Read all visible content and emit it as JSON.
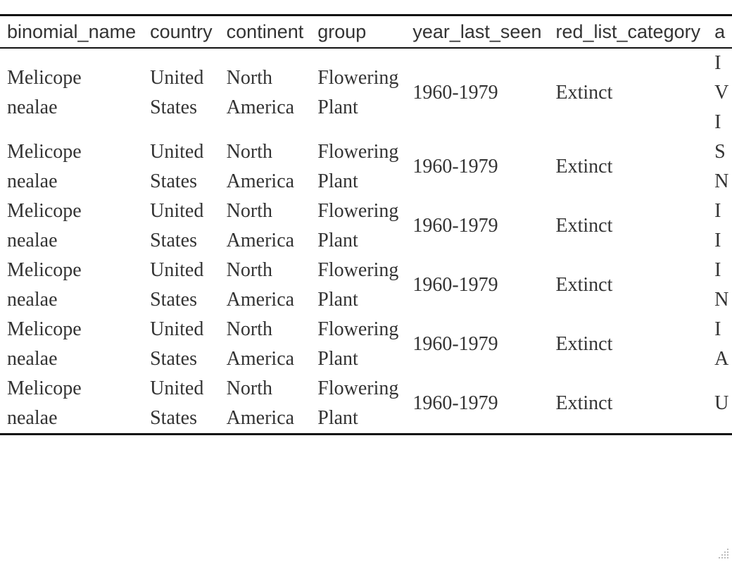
{
  "table": {
    "columns": [
      "binomial_name",
      "country",
      "continent",
      "group",
      "year_last_seen",
      "red_list_category",
      "a"
    ],
    "rows": [
      {
        "binomial_name": [
          "Melicope",
          "nealae"
        ],
        "country": [
          "United",
          "States"
        ],
        "continent": [
          "North",
          "America"
        ],
        "group": [
          "Flowering",
          "Plant"
        ],
        "year_last_seen": "1960-1979",
        "red_list_category": "Extinct",
        "extra": [
          "I",
          "V",
          "I"
        ]
      },
      {
        "binomial_name": [
          "Melicope",
          "nealae"
        ],
        "country": [
          "United",
          "States"
        ],
        "continent": [
          "North",
          "America"
        ],
        "group": [
          "Flowering",
          "Plant"
        ],
        "year_last_seen": "1960-1979",
        "red_list_category": "Extinct",
        "extra": [
          "S",
          "N"
        ]
      },
      {
        "binomial_name": [
          "Melicope",
          "nealae"
        ],
        "country": [
          "United",
          "States"
        ],
        "continent": [
          "North",
          "America"
        ],
        "group": [
          "Flowering",
          "Plant"
        ],
        "year_last_seen": "1960-1979",
        "red_list_category": "Extinct",
        "extra": [
          "I",
          "I"
        ]
      },
      {
        "binomial_name": [
          "Melicope",
          "nealae"
        ],
        "country": [
          "United",
          "States"
        ],
        "continent": [
          "North",
          "America"
        ],
        "group": [
          "Flowering",
          "Plant"
        ],
        "year_last_seen": "1960-1979",
        "red_list_category": "Extinct",
        "extra": [
          "I",
          "N"
        ]
      },
      {
        "binomial_name": [
          "Melicope",
          "nealae"
        ],
        "country": [
          "United",
          "States"
        ],
        "continent": [
          "North",
          "America"
        ],
        "group": [
          "Flowering",
          "Plant"
        ],
        "year_last_seen": "1960-1979",
        "red_list_category": "Extinct",
        "extra": [
          "I",
          "A"
        ]
      },
      {
        "binomial_name": [
          "Melicope",
          "nealae"
        ],
        "country": [
          "United",
          "States"
        ],
        "continent": [
          "North",
          "America"
        ],
        "group": [
          "Flowering",
          "Plant"
        ],
        "year_last_seen": "1960-1979",
        "red_list_category": "Extinct",
        "extra": [
          "U"
        ]
      }
    ]
  },
  "icons": {
    "resize_grip": "resize-grip-icon"
  },
  "colors": {
    "text": "#333333",
    "rule": "#111111",
    "background": "#ffffff"
  }
}
